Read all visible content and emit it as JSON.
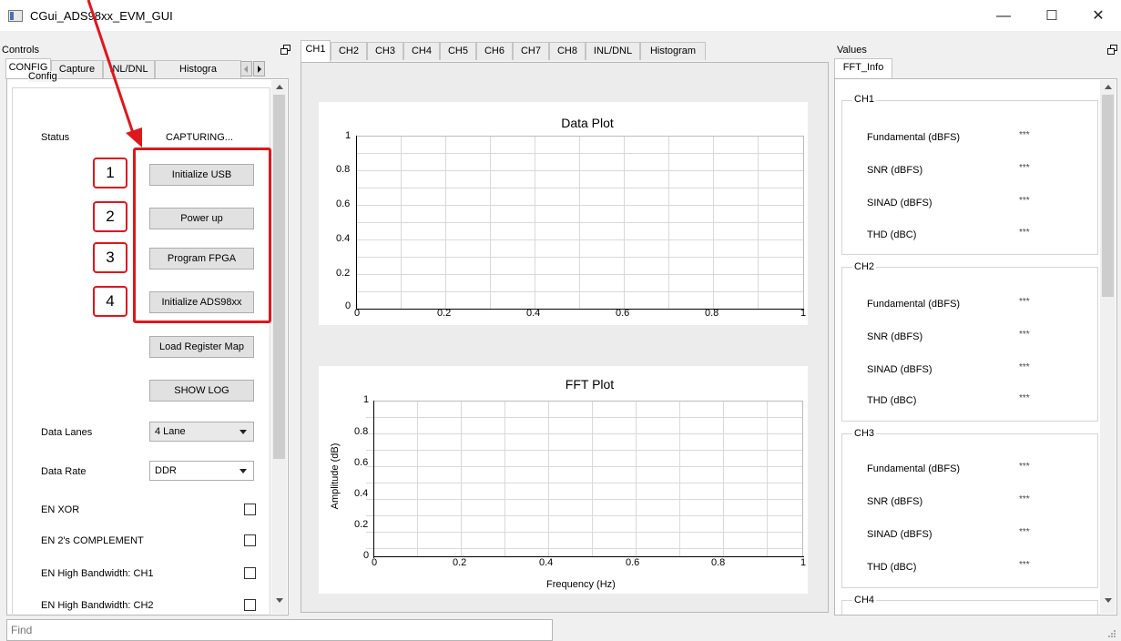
{
  "window": {
    "title": "CGui_ADS98xx_EVM_GUI",
    "minimize": "—",
    "maximize": "☐",
    "close": "✕"
  },
  "controls": {
    "dock_title": "Controls",
    "tabs": [
      "CONFIG",
      "Capture",
      "INL/DNL",
      "Histogra"
    ],
    "group_title": "Config",
    "status_label": "Status",
    "status_value": "CAPTURING...",
    "buttons": {
      "init_usb": "Initialize USB",
      "power_up": "Power up",
      "program_fpga": "Program FPGA",
      "init_ads": "Initialize ADS98xx",
      "load_reg": "Load Register Map",
      "show_log": "SHOW LOG"
    },
    "data_lanes_label": "Data Lanes",
    "data_lanes_value": "4 Lane",
    "data_rate_label": "Data Rate",
    "data_rate_value": "DDR",
    "checkboxes": [
      "EN XOR",
      "EN 2's COMPLEMENT",
      "EN High Bandwidth: CH1",
      "EN High Bandwidth: CH2"
    ]
  },
  "annotations": [
    "1",
    "2",
    "3",
    "4"
  ],
  "center": {
    "tabs": [
      "CH1",
      "CH2",
      "CH3",
      "CH4",
      "CH5",
      "CH6",
      "CH7",
      "CH8",
      "INL/DNL",
      "Histogram"
    ],
    "data_plot": {
      "title": "Data Plot",
      "xticks": [
        "0",
        "0.2",
        "0.4",
        "0.6",
        "0.8",
        "1"
      ],
      "yticks": [
        "0",
        "0.2",
        "0.4",
        "0.6",
        "0.8",
        "1"
      ]
    },
    "fft_plot": {
      "title": "FFT Plot",
      "xlabel": "Frequency (Hz)",
      "ylabel": "Amplitude (dB)",
      "xticks": [
        "0",
        "0.2",
        "0.4",
        "0.6",
        "0.8",
        "1"
      ],
      "yticks": [
        "0",
        "0.2",
        "0.4",
        "0.6",
        "0.8",
        "1"
      ]
    }
  },
  "values": {
    "dock_title": "Values",
    "tab": "FFT_Info",
    "groups": [
      {
        "name": "CH1",
        "rows": [
          {
            "label": "Fundamental (dBFS)",
            "value": "***"
          },
          {
            "label": "SNR (dBFS)",
            "value": "***"
          },
          {
            "label": "SINAD (dBFS)",
            "value": "***"
          },
          {
            "label": "THD (dBC)",
            "value": "***"
          }
        ]
      },
      {
        "name": "CH2",
        "rows": [
          {
            "label": "Fundamental (dBFS)",
            "value": "***"
          },
          {
            "label": "SNR (dBFS)",
            "value": "***"
          },
          {
            "label": "SINAD (dBFS)",
            "value": "***"
          },
          {
            "label": "THD (dBC)",
            "value": "***"
          }
        ]
      },
      {
        "name": "CH3",
        "rows": [
          {
            "label": "Fundamental (dBFS)",
            "value": "***"
          },
          {
            "label": "SNR (dBFS)",
            "value": "***"
          },
          {
            "label": "SINAD (dBFS)",
            "value": "***"
          },
          {
            "label": "THD (dBC)",
            "value": "***"
          }
        ]
      },
      {
        "name": "CH4",
        "rows": []
      }
    ]
  },
  "find": {
    "placeholder": "Find"
  }
}
